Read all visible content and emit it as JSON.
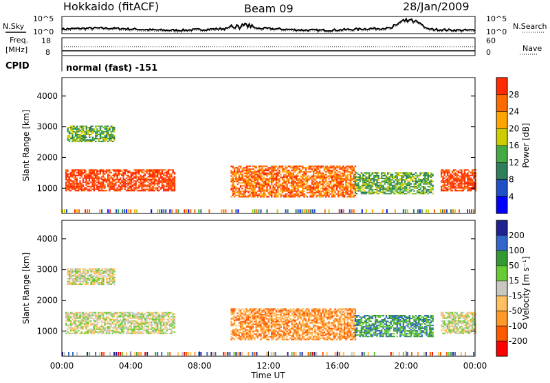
{
  "header": {
    "radar": "Hokkaido (fitACF)",
    "beam": "Beam 09",
    "date": "28/Jan/2009"
  },
  "status_panels": {
    "nsky": {
      "label": "N.Sky",
      "ticks": [
        "10^5",
        "10^0"
      ]
    },
    "nsearch": {
      "label": "N.Search",
      "ticks": [
        "10^5",
        "10^0"
      ]
    },
    "freq": {
      "label_line1": "Freq.",
      "label_line2": "[MHz]",
      "ticks": [
        "18",
        "8"
      ]
    },
    "nave": {
      "label": "Nave",
      "ticks": [
        "60",
        "0"
      ]
    },
    "cpid": {
      "label": "CPID",
      "text": "normal (fast) -151"
    }
  },
  "chart_data": [
    {
      "type": "heatmap",
      "name": "power",
      "ylabel": "Slant Range [km]",
      "yticks": [
        1000,
        2000,
        3000,
        4000
      ],
      "ylim": [
        180,
        4600
      ],
      "colorbar": {
        "label": "Power [dB]",
        "ticks": [
          "4",
          "8",
          "12",
          "16",
          "20",
          "24",
          "28"
        ],
        "colors": [
          "#0000ff",
          "#2050c8",
          "#2e7d5b",
          "#44aa44",
          "#cccc00",
          "#ffa500",
          "#ff6a00",
          "#ff2a00"
        ]
      },
      "regions": [
        {
          "t": [
            0.2,
            6.5
          ],
          "r": [
            900,
            1600
          ],
          "level": 7
        },
        {
          "t": [
            0.3,
            3.0
          ],
          "r": [
            2500,
            3000
          ],
          "level": 3
        },
        {
          "t": [
            9.8,
            17.0
          ],
          "r": [
            700,
            1700
          ],
          "level": 6
        },
        {
          "t": [
            17.0,
            21.5
          ],
          "r": [
            800,
            1500
          ],
          "level": 3
        },
        {
          "t": [
            22.0,
            24.0
          ],
          "r": [
            900,
            1600
          ],
          "level": 7
        }
      ]
    },
    {
      "type": "heatmap",
      "name": "velocity",
      "ylabel": "Slant Range [km]",
      "yticks": [
        1000,
        2000,
        3000,
        4000
      ],
      "ylim": [
        180,
        4600
      ],
      "xlabel": "Time UT",
      "xticks": [
        "00:00",
        "04:00",
        "08:00",
        "12:00",
        "16:00",
        "20:00",
        "00:00"
      ],
      "colorbar": {
        "label": "Velocity [m s⁻¹]",
        "ticks": [
          "-200",
          "-100",
          "-50",
          "-15",
          "15",
          "50",
          "100",
          "200"
        ],
        "colors": [
          "#ff0000",
          "#ff5a00",
          "#ff9a2a",
          "#ffc060",
          "#c8c8c0",
          "#66cc33",
          "#339933",
          "#3366cc",
          "#202090"
        ]
      },
      "regions": [
        {
          "t": [
            0.2,
            6.5
          ],
          "r": [
            900,
            1600
          ],
          "level": 4
        },
        {
          "t": [
            0.3,
            3.0
          ],
          "r": [
            2500,
            3000
          ],
          "level": 4
        },
        {
          "t": [
            9.8,
            17.0
          ],
          "r": [
            700,
            1700
          ],
          "level": 2
        },
        {
          "t": [
            17.0,
            21.5
          ],
          "r": [
            800,
            1500
          ],
          "level": 6
        },
        {
          "t": [
            22.0,
            24.0
          ],
          "r": [
            900,
            1600
          ],
          "level": 4
        }
      ]
    }
  ]
}
